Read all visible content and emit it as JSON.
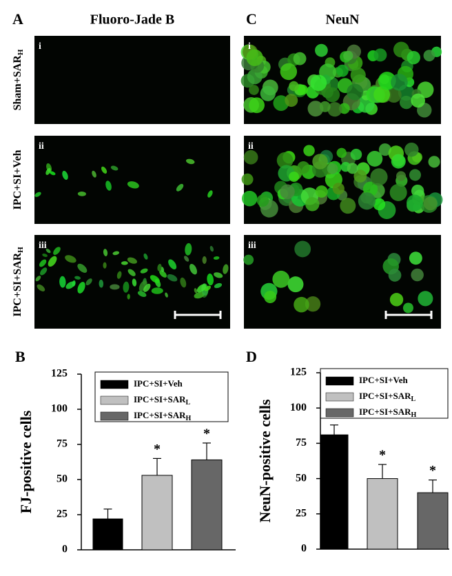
{
  "panels": [
    {
      "letter": "A",
      "title": "Fluoro-Jade B",
      "rows": [
        "i",
        "ii",
        "iii"
      ]
    },
    {
      "letter": "C",
      "title": "NeuN",
      "rows": [
        "i",
        "ii",
        "iii"
      ]
    }
  ],
  "row_labels": [
    {
      "text": "Sham+SAR",
      "sub": "H"
    },
    {
      "text": "IPC+SI+Veh"
    },
    {
      "text": "IPC+SI+SAR",
      "sub": "H"
    }
  ],
  "chart_data": [
    {
      "type": "bar",
      "letter": "B",
      "ylabel": "FJ-positive cells",
      "ylim": [
        0,
        125
      ],
      "yticks": [
        0,
        25,
        50,
        75,
        100,
        125
      ],
      "series": [
        {
          "name": "IPC+SI+Veh",
          "color": "#000000",
          "values": [
            22
          ],
          "errors": [
            7
          ]
        },
        {
          "name": "IPC+SI+SAR",
          "sub": "L",
          "color": "#c0c0c0",
          "values": [
            53
          ],
          "errors": [
            12
          ],
          "marker": "*"
        },
        {
          "name": "IPC+SI+SAR",
          "sub": "H",
          "color": "#676767",
          "values": [
            64
          ],
          "errors": [
            12
          ],
          "marker": "*"
        }
      ]
    },
    {
      "type": "bar",
      "letter": "D",
      "ylabel": "NeuN-positive cells",
      "ylim": [
        0,
        125
      ],
      "yticks": [
        0,
        25,
        50,
        75,
        100,
        125
      ],
      "series": [
        {
          "name": "IPC+SI+Veh",
          "color": "#000000",
          "values": [
            81
          ],
          "errors": [
            7
          ]
        },
        {
          "name": "IPC+SI+SAR",
          "sub": "L",
          "color": "#c0c0c0",
          "values": [
            50
          ],
          "errors": [
            10
          ],
          "marker": "*"
        },
        {
          "name": "IPC+SI+SAR",
          "sub": "H",
          "color": "#676767",
          "values": [
            40
          ],
          "errors": [
            9
          ],
          "marker": "*"
        }
      ]
    }
  ]
}
